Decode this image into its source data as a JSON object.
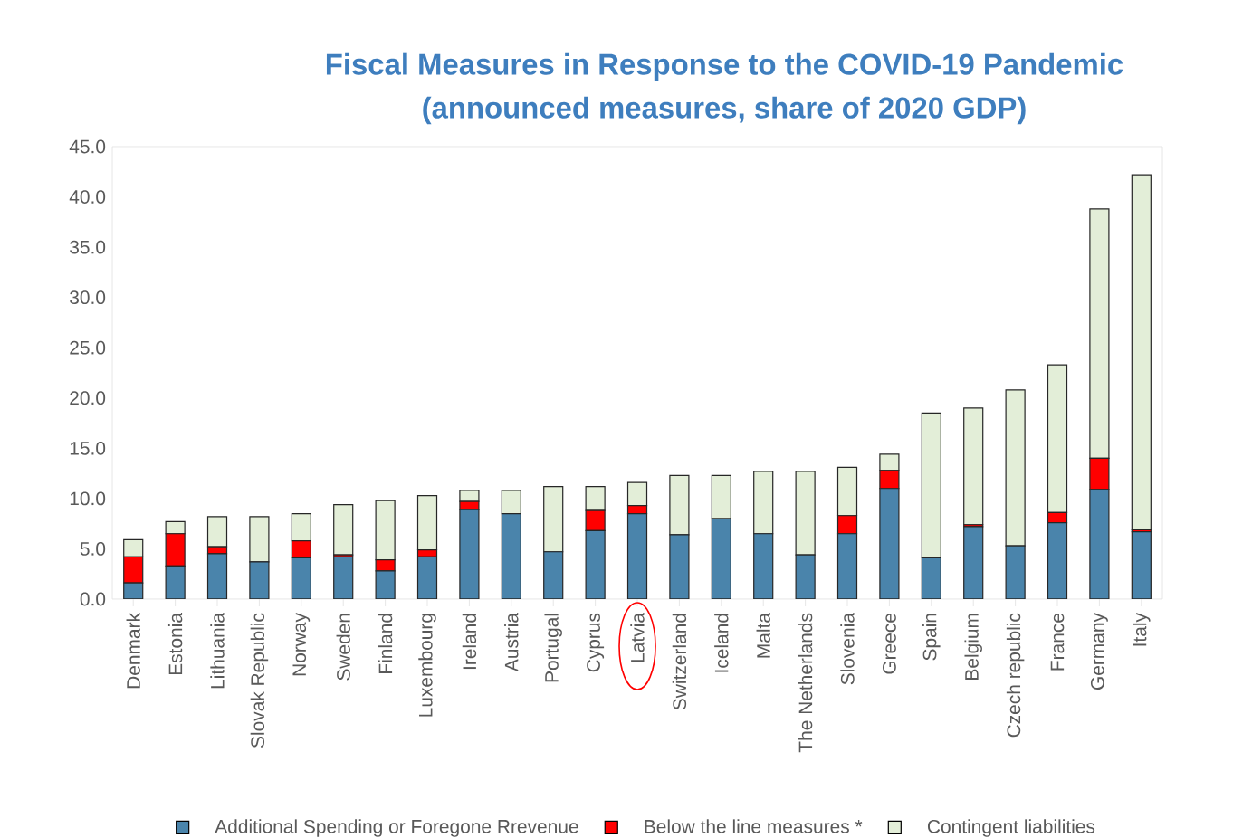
{
  "chart_data": {
    "type": "bar",
    "stacked": true,
    "title": "Fiscal Measures in Response to the COVID-19 Pandemic",
    "subtitle": "(announced measures, share of 2020 GDP)",
    "categories": [
      "Denmark",
      "Estonia",
      "Lithuania",
      "Slovak Republic",
      "Norway",
      "Sweden",
      "Finland",
      "Luxembourg",
      "Ireland",
      "Austria",
      "Portugal",
      "Cyprus",
      "Latvia",
      "Switzerland",
      "Iceland",
      "Malta",
      "The Netherlands",
      "Slovenia",
      "Greece",
      "Spain",
      "Belgium",
      "Czech republic",
      "France",
      "Germany",
      "Italy"
    ],
    "series": [
      {
        "name": "Additional Spending or Foregone Rrevenue",
        "color": "#4a84ab",
        "values": [
          1.6,
          3.3,
          4.5,
          3.7,
          4.1,
          4.2,
          2.8,
          4.2,
          8.9,
          8.5,
          4.7,
          6.8,
          8.5,
          6.4,
          8.0,
          6.5,
          4.4,
          6.5,
          11.0,
          4.1,
          7.2,
          5.3,
          7.6,
          10.9,
          6.7
        ]
      },
      {
        "name": "Below the line measures *",
        "color": "#ff0000",
        "values": [
          2.6,
          3.2,
          0.7,
          0,
          1.7,
          0.2,
          1.1,
          0.7,
          0.8,
          0,
          0,
          2.0,
          0.8,
          0,
          0,
          0,
          0,
          1.8,
          1.8,
          0,
          0.2,
          0,
          1.0,
          3.1,
          0.2
        ]
      },
      {
        "name": "Contingent liabilities",
        "color": "#e3eed8",
        "values": [
          1.7,
          1.2,
          3.0,
          4.5,
          2.7,
          5.0,
          5.9,
          5.4,
          1.1,
          2.3,
          6.5,
          2.4,
          2.3,
          5.9,
          4.3,
          6.2,
          8.3,
          4.8,
          1.6,
          14.4,
          11.6,
          15.5,
          14.7,
          24.8,
          35.3
        ]
      }
    ],
    "ylim": [
      0,
      45
    ],
    "yticks": [
      {
        "value": 0,
        "label": "0.0"
      },
      {
        "value": 5,
        "label": "5.0"
      },
      {
        "value": 10,
        "label": "10.0"
      },
      {
        "value": 15,
        "label": "15.0"
      },
      {
        "value": 20,
        "label": "20.0"
      },
      {
        "value": 25,
        "label": "25.0"
      },
      {
        "value": 30,
        "label": "30.0"
      },
      {
        "value": 35,
        "label": "35.0"
      },
      {
        "value": 40,
        "label": "40.0"
      },
      {
        "value": 45,
        "label": "45.0"
      }
    ],
    "grid": false,
    "legend": "bottom"
  }
}
